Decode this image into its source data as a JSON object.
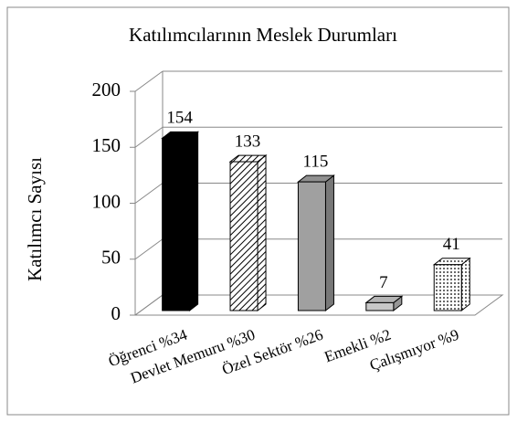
{
  "chart_data": {
    "type": "bar3d",
    "title": "Katılımcılarının Meslek Durumları",
    "y_label": "Katılımcı Sayısı",
    "categories": [
      "Öğrenci %34",
      "Devlet Memuru %30",
      "Özel Sektör %26",
      "Emekli %2",
      "Çalışmıyor %9"
    ],
    "values": [
      154,
      133,
      115,
      7,
      41
    ],
    "colors": [
      "#000000",
      "#ffffff",
      "#a0a0a0",
      "#c8c8c8",
      "#ffffff"
    ],
    "patterns": [
      "solid",
      "diagonal",
      "solid",
      "solid",
      "dots"
    ],
    "ylim": [
      0,
      200
    ],
    "yticks": [
      0,
      50,
      100,
      150,
      200
    ],
    "grid": true
  }
}
